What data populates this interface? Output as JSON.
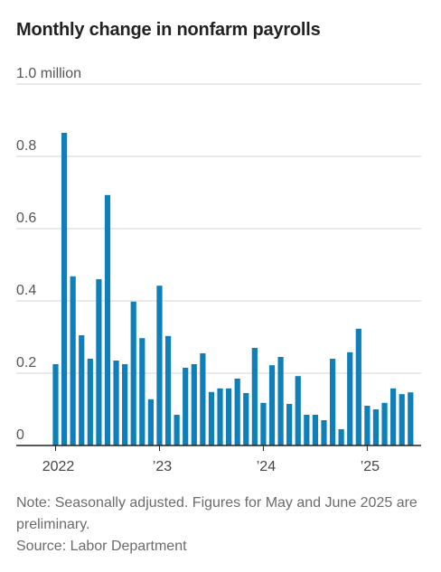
{
  "chart_data": {
    "type": "bar",
    "title": "Monthly change in nonfarm payrolls",
    "unit": "million",
    "ylim": [
      0,
      1.0
    ],
    "y_ticks": [
      {
        "value": 0,
        "label": "0"
      },
      {
        "value": 0.2,
        "label": "0.2"
      },
      {
        "value": 0.4,
        "label": "0.4"
      },
      {
        "value": 0.6,
        "label": "0.6"
      },
      {
        "value": 0.8,
        "label": "0.8"
      },
      {
        "value": 1.0,
        "label": "1.0 million"
      }
    ],
    "x_ticks": [
      {
        "index": 0,
        "label": "2022"
      },
      {
        "index": 12,
        "label": "’23"
      },
      {
        "index": 24,
        "label": "’24"
      },
      {
        "index": 36,
        "label": "’25"
      }
    ],
    "categories": [
      "2022-01",
      "2022-02",
      "2022-03",
      "2022-04",
      "2022-05",
      "2022-06",
      "2022-07",
      "2022-08",
      "2022-09",
      "2022-10",
      "2022-11",
      "2022-12",
      "2023-01",
      "2023-02",
      "2023-03",
      "2023-04",
      "2023-05",
      "2023-06",
      "2023-07",
      "2023-08",
      "2023-09",
      "2023-10",
      "2023-11",
      "2023-12",
      "2024-01",
      "2024-02",
      "2024-03",
      "2024-04",
      "2024-05",
      "2024-06",
      "2024-07",
      "2024-08",
      "2024-09",
      "2024-10",
      "2024-11",
      "2024-12",
      "2025-01",
      "2025-02",
      "2025-03",
      "2025-04",
      "2025-05",
      "2025-06"
    ],
    "values": [
      0.225,
      0.865,
      0.468,
      0.305,
      0.24,
      0.46,
      0.693,
      0.235,
      0.225,
      0.398,
      0.297,
      0.128,
      0.442,
      0.303,
      0.085,
      0.215,
      0.225,
      0.255,
      0.148,
      0.158,
      0.158,
      0.185,
      0.145,
      0.27,
      0.118,
      0.222,
      0.245,
      0.115,
      0.192,
      0.085,
      0.085,
      0.07,
      0.24,
      0.045,
      0.258,
      0.323,
      0.11,
      0.1,
      0.118,
      0.158,
      0.142,
      0.147
    ],
    "bar_color": "#0e7fb8",
    "grid": true
  },
  "notes": {
    "note": "Note: Seasonally adjusted. Figures for May and June 2025 are preliminary.",
    "source": "Source: Labor Department"
  }
}
